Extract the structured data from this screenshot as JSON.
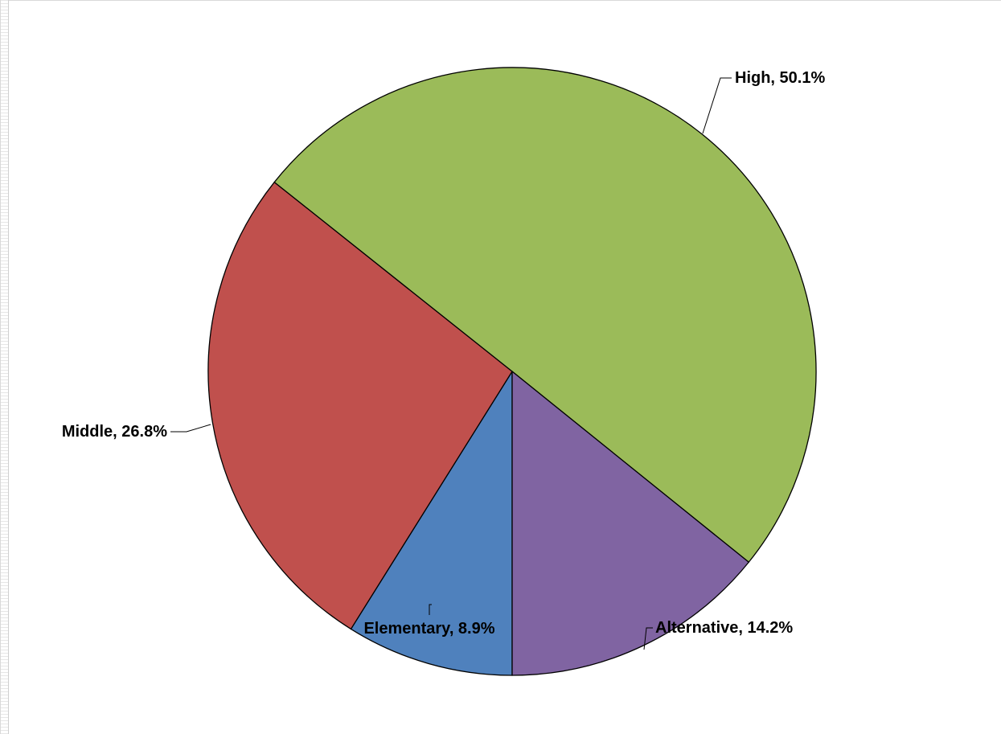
{
  "chart_data": {
    "type": "pie",
    "categories": [
      "Elementary",
      "Middle",
      "High",
      "Alternative"
    ],
    "values": [
      8.9,
      26.8,
      50.1,
      14.2
    ],
    "value_unit": "%",
    "colors": [
      "#4f81bd",
      "#c0504d",
      "#9bbb59",
      "#8064a2"
    ],
    "labels": [
      "Elementary, 8.9%",
      "Middle, 26.8%",
      "High, 50.1%",
      "Alternative, 14.2%"
    ],
    "start_direction": "bottom",
    "slice_order": "clockwise",
    "legend": "none",
    "title": ""
  }
}
